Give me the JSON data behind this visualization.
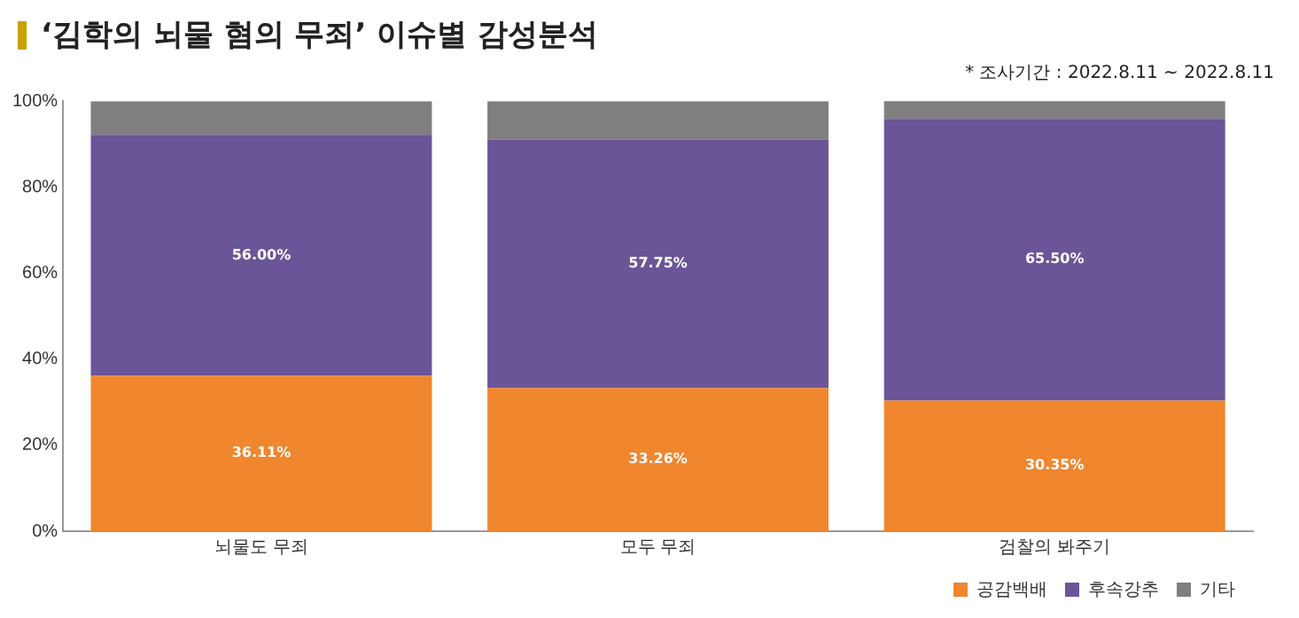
{
  "chart_data": {
    "type": "bar",
    "title": "‘김학의 뇌물 혐의 무죄’ 이슈별 감성분석",
    "annotations": [
      "* 조사기간 : 2022.8.11 ~ 2022.8.11"
    ],
    "categories": [
      "뇌물도 무죄",
      "모두 무죄",
      "검찰의 봐주기"
    ],
    "stacked": true,
    "series": [
      {
        "name": "공감백배",
        "color": "#f0862e",
        "values": [
          36.11,
          33.26,
          30.35
        ],
        "value_labels": [
          "36.11%",
          "33.26%",
          "30.35%"
        ]
      },
      {
        "name": "후속강추",
        "color": "#6a5598",
        "values": [
          56.0,
          57.75,
          65.5
        ],
        "value_labels": [
          "56.00%",
          "57.75%",
          "65.50%"
        ]
      },
      {
        "name": "기타",
        "color": "#7f7f7f",
        "values": [
          7.8,
          8.9,
          4.1
        ]
      }
    ],
    "ylim": [
      0,
      100
    ],
    "yticks": [
      {
        "value": 0,
        "label": "0%"
      },
      {
        "value": 20,
        "label": "20%"
      },
      {
        "value": 40,
        "label": "40%"
      },
      {
        "value": 60,
        "label": "60%"
      },
      {
        "value": 80,
        "label": "80%"
      },
      {
        "value": 100,
        "label": "100%"
      }
    ],
    "grid": false,
    "legend": "bottom right"
  }
}
